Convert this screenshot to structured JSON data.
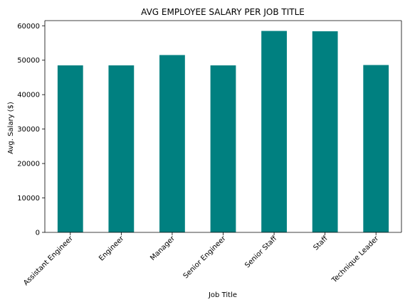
{
  "chart_data": {
    "type": "bar",
    "title": "AVG EMPLOYEE SALARY PER JOB TITLE",
    "xlabel": "Job Title",
    "ylabel": "Avg. Salary ($)",
    "categories": [
      "Assistant Engineer",
      "Engineer",
      "Manager",
      "Senior Engineer",
      "Senior Staff",
      "Staff",
      "Technique Leader"
    ],
    "values": [
      48500,
      48500,
      51500,
      48500,
      58500,
      58400,
      48600
    ],
    "ylim": [
      0,
      61500
    ],
    "yticks": [
      0,
      10000,
      20000,
      30000,
      40000,
      50000,
      60000
    ],
    "bar_color": "#008080",
    "grid": false,
    "legend": false
  }
}
